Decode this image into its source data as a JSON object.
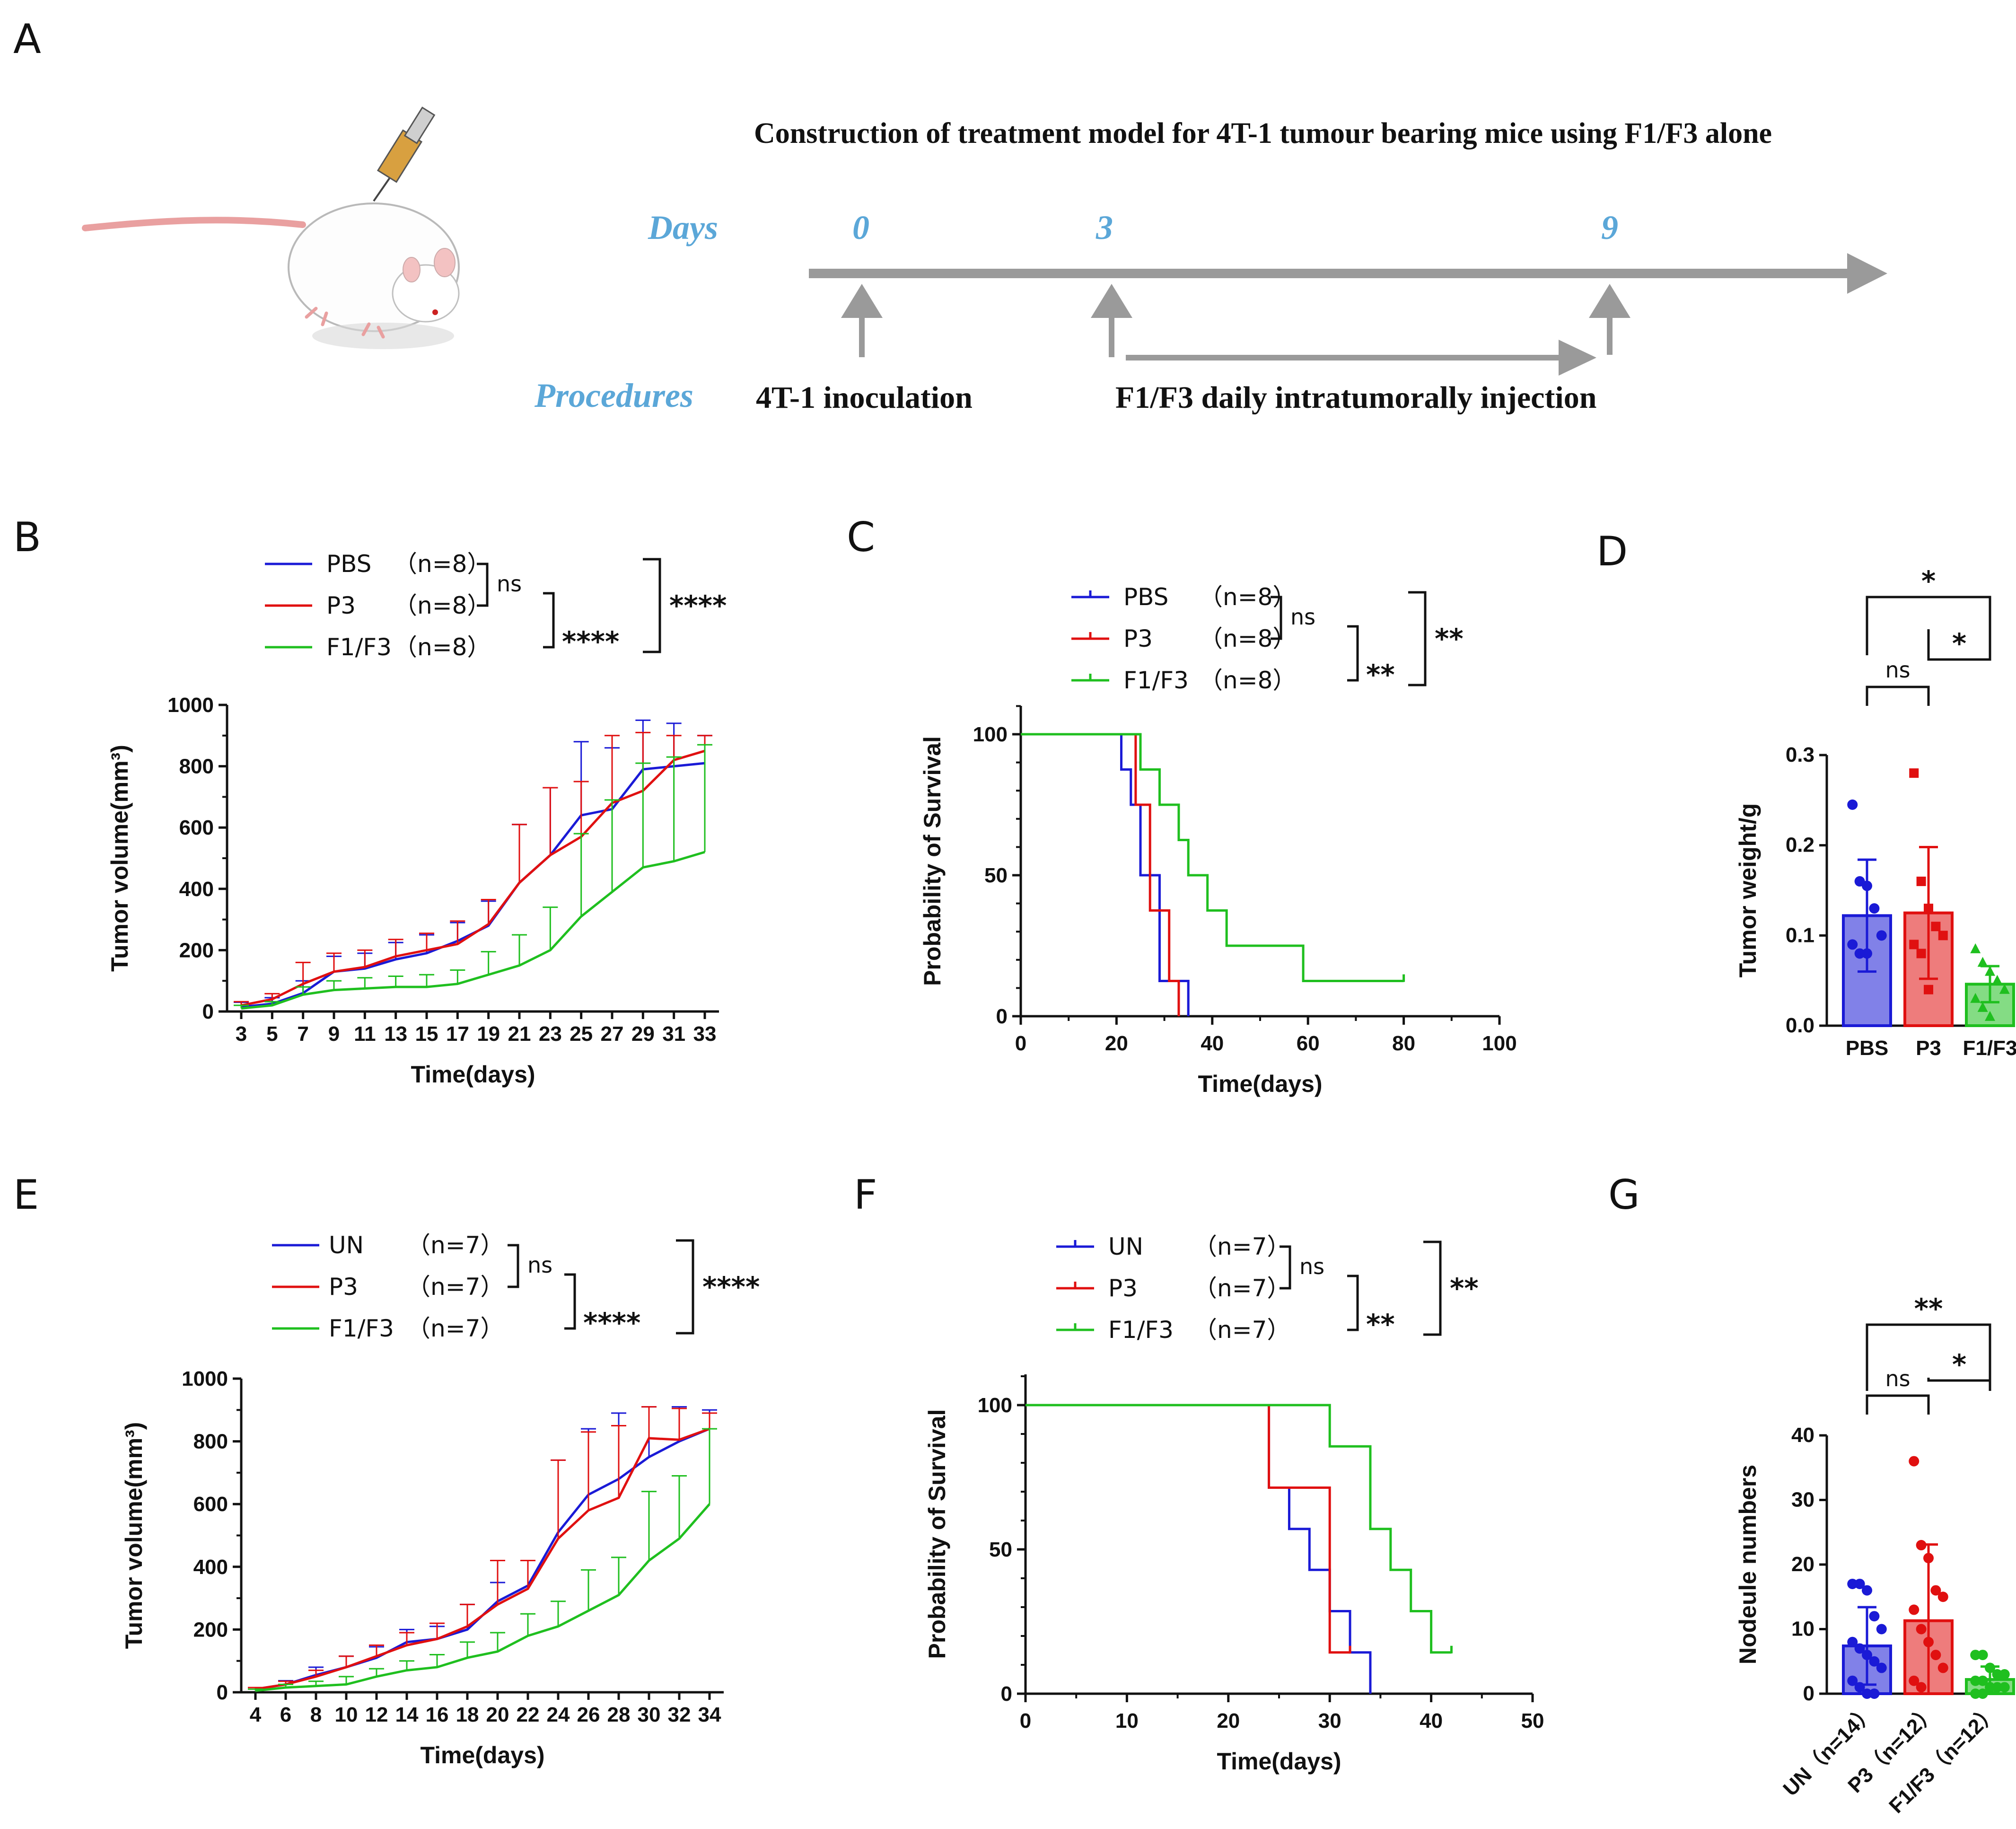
{
  "colors": {
    "blue": "#1a1ad6",
    "red": "#e01010",
    "green": "#1fbf1f",
    "gray": "#9a9a9a",
    "lightblue": "#5ba7d8",
    "axis": "#111111"
  },
  "panels": {
    "A": "A",
    "B": "B",
    "C": "C",
    "D": "D",
    "E": "E",
    "F": "F",
    "G": "G"
  },
  "timeline": {
    "title": "Construction of treatment model for 4T-1 tumour bearing mice using F1/F3 alone",
    "days_label": "Days",
    "procedures_label": "Procedures",
    "day_marks": [
      "0",
      "3",
      "9"
    ],
    "inoculation": "4T-1 inoculation",
    "injection": "F1/F3 daily intratumorally injection",
    "illustration_icon": "mouse-syringe-icon"
  },
  "chart_data": [
    {
      "id": "B",
      "type": "line",
      "xlabel": "Time(days)",
      "ylabel": "Tumor volume(mm³)",
      "ylim": [
        0,
        1000
      ],
      "yticks": [
        "0",
        "200",
        "400",
        "600",
        "800",
        "1000"
      ],
      "x": [
        3,
        5,
        7,
        9,
        11,
        13,
        15,
        17,
        19,
        21,
        23,
        25,
        27,
        29,
        31,
        33
      ],
      "xticks": [
        "3",
        "5",
        "7",
        "9",
        "11",
        "13",
        "15",
        "17",
        "19",
        "21",
        "23",
        "25",
        "27",
        "29",
        "31",
        "33"
      ],
      "legend": [
        {
          "name": "PBS",
          "n": "（n=8）",
          "color": "blue"
        },
        {
          "name": "P3",
          "n": "（n=8）",
          "color": "red"
        },
        {
          "name": "F1/F3",
          "n": "（n=8）",
          "color": "green"
        }
      ],
      "sig": {
        "ns": "ns",
        "a": "****",
        "b": "****"
      },
      "series": [
        {
          "name": "PBS",
          "color": "blue",
          "values": [
            15,
            25,
            60,
            130,
            140,
            170,
            190,
            230,
            280,
            420,
            510,
            640,
            660,
            790,
            800,
            810
          ],
          "err": [
            15,
            20,
            40,
            50,
            50,
            55,
            60,
            60,
            80,
            190,
            220,
            240,
            200,
            160,
            140,
            90
          ]
        },
        {
          "name": "P3",
          "color": "red",
          "values": [
            20,
            40,
            90,
            130,
            145,
            180,
            200,
            220,
            285,
            420,
            510,
            570,
            680,
            720,
            820,
            850
          ],
          "err": [
            12,
            18,
            70,
            60,
            55,
            55,
            55,
            75,
            80,
            190,
            220,
            180,
            220,
            190,
            80,
            50
          ]
        },
        {
          "name": "F1/F3",
          "color": "green",
          "values": [
            10,
            20,
            55,
            70,
            75,
            80,
            80,
            90,
            120,
            150,
            200,
            310,
            390,
            470,
            490,
            520
          ],
          "err": [
            10,
            12,
            25,
            30,
            35,
            35,
            40,
            45,
            75,
            100,
            140,
            270,
            300,
            340,
            340,
            350
          ]
        }
      ]
    },
    {
      "id": "C",
      "type": "line",
      "xlabel": "Time(days)",
      "ylabel": "Probability of Survival",
      "xlim": [
        0,
        100
      ],
      "ylim": [
        0,
        100
      ],
      "xticks": [
        "0",
        "20",
        "40",
        "60",
        "80",
        "100"
      ],
      "yticks": [
        "0",
        "50",
        "100"
      ],
      "legend": [
        {
          "name": "PBS",
          "n": "（n=8）",
          "color": "blue"
        },
        {
          "name": "P3",
          "n": "（n=8）",
          "color": "red"
        },
        {
          "name": "F1/F3",
          "n": "（n=8）",
          "color": "green"
        }
      ],
      "sig": {
        "ns": "ns",
        "a": "**",
        "b": "**"
      },
      "series": [
        {
          "name": "PBS",
          "color": "blue",
          "points": [
            [
              0,
              100
            ],
            [
              21,
              100
            ],
            [
              21,
              87.5
            ],
            [
              23,
              87.5
            ],
            [
              23,
              75
            ],
            [
              25,
              75
            ],
            [
              25,
              50
            ],
            [
              29,
              50
            ],
            [
              29,
              12.5
            ],
            [
              35,
              12.5
            ],
            [
              35,
              0
            ]
          ]
        },
        {
          "name": "P3",
          "color": "red",
          "points": [
            [
              0,
              100
            ],
            [
              24,
              100
            ],
            [
              24,
              75
            ],
            [
              27,
              75
            ],
            [
              27,
              37.5
            ],
            [
              31,
              37.5
            ],
            [
              31,
              12.5
            ],
            [
              33,
              12.5
            ],
            [
              33,
              0
            ]
          ]
        },
        {
          "name": "F1/F3",
          "color": "green",
          "points": [
            [
              0,
              100
            ],
            [
              25,
              100
            ],
            [
              25,
              87.5
            ],
            [
              29,
              87.5
            ],
            [
              29,
              75
            ],
            [
              33,
              75
            ],
            [
              33,
              62.5
            ],
            [
              35,
              62.5
            ],
            [
              35,
              50
            ],
            [
              39,
              50
            ],
            [
              39,
              37.5
            ],
            [
              43,
              37.5
            ],
            [
              43,
              25
            ],
            [
              59,
              25
            ],
            [
              59,
              12.5
            ],
            [
              80,
              12.5
            ]
          ]
        }
      ]
    },
    {
      "id": "D",
      "type": "bar",
      "ylabel": "Tumor weight/g",
      "ylim": [
        0,
        0.3
      ],
      "yticks": [
        "0.0",
        "0.1",
        "0.2",
        "0.3"
      ],
      "categories": [
        "PBS",
        "P3",
        "F1/F3"
      ],
      "values": [
        0.122,
        0.125,
        0.046
      ],
      "err": [
        0.062,
        0.073,
        0.02
      ],
      "colors": [
        "blue",
        "red",
        "green"
      ],
      "markers": [
        "circle",
        "square",
        "triangle"
      ],
      "points": [
        [
          0.245,
          0.16,
          0.155,
          0.13,
          0.1,
          0.09,
          0.08,
          0.08
        ],
        [
          0.28,
          0.16,
          0.13,
          0.11,
          0.1,
          0.09,
          0.08,
          0.04
        ],
        [
          0.085,
          0.07,
          0.06,
          0.05,
          0.04,
          0.03,
          0.02,
          0.01
        ]
      ],
      "sig": {
        "top": "*",
        "mid": "*",
        "ns": "ns"
      }
    },
    {
      "id": "E",
      "type": "line",
      "xlabel": "Time(days)",
      "ylabel": "Tumor volume(mm³)",
      "ylim": [
        0,
        1000
      ],
      "yticks": [
        "0",
        "200",
        "400",
        "600",
        "800",
        "1000"
      ],
      "x": [
        4,
        6,
        8,
        10,
        12,
        14,
        16,
        18,
        20,
        22,
        24,
        26,
        28,
        30,
        32,
        34
      ],
      "xticks": [
        "4",
        "6",
        "8",
        "10",
        "12",
        "14",
        "16",
        "18",
        "20",
        "22",
        "24",
        "26",
        "28",
        "30",
        "32",
        "34"
      ],
      "legend": [
        {
          "name": "UN",
          "n": "（n=7）",
          "color": "blue"
        },
        {
          "name": "P3",
          "n": "（n=7）",
          "color": "red"
        },
        {
          "name": "F1/F3",
          "n": "（n=7）",
          "color": "green"
        }
      ],
      "sig": {
        "ns": "ns",
        "a": "****",
        "b": "****"
      },
      "series": [
        {
          "name": "UN",
          "color": "blue",
          "values": [
            10,
            25,
            55,
            80,
            110,
            160,
            170,
            200,
            290,
            340,
            510,
            630,
            680,
            750,
            800,
            840
          ],
          "err": [
            5,
            12,
            25,
            35,
            35,
            40,
            40,
            80,
            60,
            80,
            230,
            210,
            210,
            160,
            110,
            60
          ]
        },
        {
          "name": "P3",
          "color": "red",
          "values": [
            10,
            25,
            50,
            80,
            115,
            150,
            170,
            210,
            280,
            330,
            490,
            580,
            620,
            810,
            805,
            840
          ],
          "err": [
            5,
            10,
            20,
            35,
            35,
            40,
            50,
            70,
            140,
            90,
            250,
            250,
            230,
            100,
            100,
            50
          ]
        },
        {
          "name": "F1/F3",
          "color": "green",
          "values": [
            5,
            15,
            20,
            25,
            50,
            70,
            80,
            110,
            130,
            180,
            210,
            260,
            310,
            420,
            490,
            600
          ],
          "err": [
            5,
            10,
            15,
            25,
            25,
            30,
            40,
            50,
            60,
            70,
            80,
            130,
            120,
            220,
            200,
            240
          ]
        }
      ]
    },
    {
      "id": "F",
      "type": "line",
      "xlabel": "Time(days)",
      "ylabel": "Probability of Survival",
      "xlim": [
        0,
        50
      ],
      "ylim": [
        0,
        100
      ],
      "xticks": [
        "0",
        "10",
        "20",
        "30",
        "40",
        "50"
      ],
      "yticks": [
        "0",
        "50",
        "100"
      ],
      "legend": [
        {
          "name": "UN",
          "n": "（n=7）",
          "color": "blue"
        },
        {
          "name": "P3",
          "n": "（n=7）",
          "color": "red"
        },
        {
          "name": "F1/F3",
          "n": "（n=7）",
          "color": "green"
        }
      ],
      "sig": {
        "ns": "ns",
        "a": "**",
        "b": "**"
      },
      "series": [
        {
          "name": "UN",
          "color": "blue",
          "points": [
            [
              0,
              100
            ],
            [
              24,
              100
            ],
            [
              24,
              71.4
            ],
            [
              26,
              71.4
            ],
            [
              26,
              57.1
            ],
            [
              28,
              57.1
            ],
            [
              28,
              42.9
            ],
            [
              30,
              42.9
            ],
            [
              30,
              28.6
            ],
            [
              32,
              28.6
            ],
            [
              32,
              14.3
            ],
            [
              34,
              14.3
            ],
            [
              34,
              0
            ]
          ]
        },
        {
          "name": "P3",
          "color": "red",
          "points": [
            [
              0,
              100
            ],
            [
              24,
              100
            ],
            [
              24,
              71.4
            ],
            [
              30,
              71.4
            ],
            [
              30,
              14.3
            ],
            [
              32,
              14.3
            ]
          ]
        },
        {
          "name": "F1/F3",
          "color": "green",
          "points": [
            [
              0,
              100
            ],
            [
              30,
              100
            ],
            [
              30,
              85.7
            ],
            [
              34,
              85.7
            ],
            [
              34,
              57.1
            ],
            [
              36,
              57.1
            ],
            [
              36,
              42.9
            ],
            [
              38,
              42.9
            ],
            [
              38,
              28.6
            ],
            [
              40,
              28.6
            ],
            [
              40,
              14.3
            ],
            [
              42,
              14.3
            ]
          ]
        }
      ]
    },
    {
      "id": "G",
      "type": "bar",
      "ylabel": "Nodeule numbers",
      "ylim": [
        0,
        40
      ],
      "yticks": [
        "0",
        "10",
        "20",
        "30",
        "40"
      ],
      "categories": [
        "UN（n=14）",
        "P3（n=12）",
        "F1/F3（n=12）"
      ],
      "values": [
        7.4,
        11.3,
        2.2
      ],
      "err": [
        6,
        11.8,
        2
      ],
      "colors": [
        "blue",
        "red",
        "green"
      ],
      "markers": [
        "circle",
        "circle",
        "circle"
      ],
      "points": [
        [
          17,
          17,
          16,
          12,
          10,
          8,
          7,
          6,
          5,
          4,
          2,
          1,
          0,
          0
        ],
        [
          36,
          23,
          21,
          16,
          15,
          13,
          10,
          8,
          6,
          4,
          2,
          1
        ],
        [
          6,
          6,
          4,
          3,
          3,
          2,
          2,
          1,
          1,
          1,
          0,
          0
        ]
      ],
      "sig": {
        "top": "**",
        "mid": "*",
        "ns": "ns"
      }
    }
  ]
}
